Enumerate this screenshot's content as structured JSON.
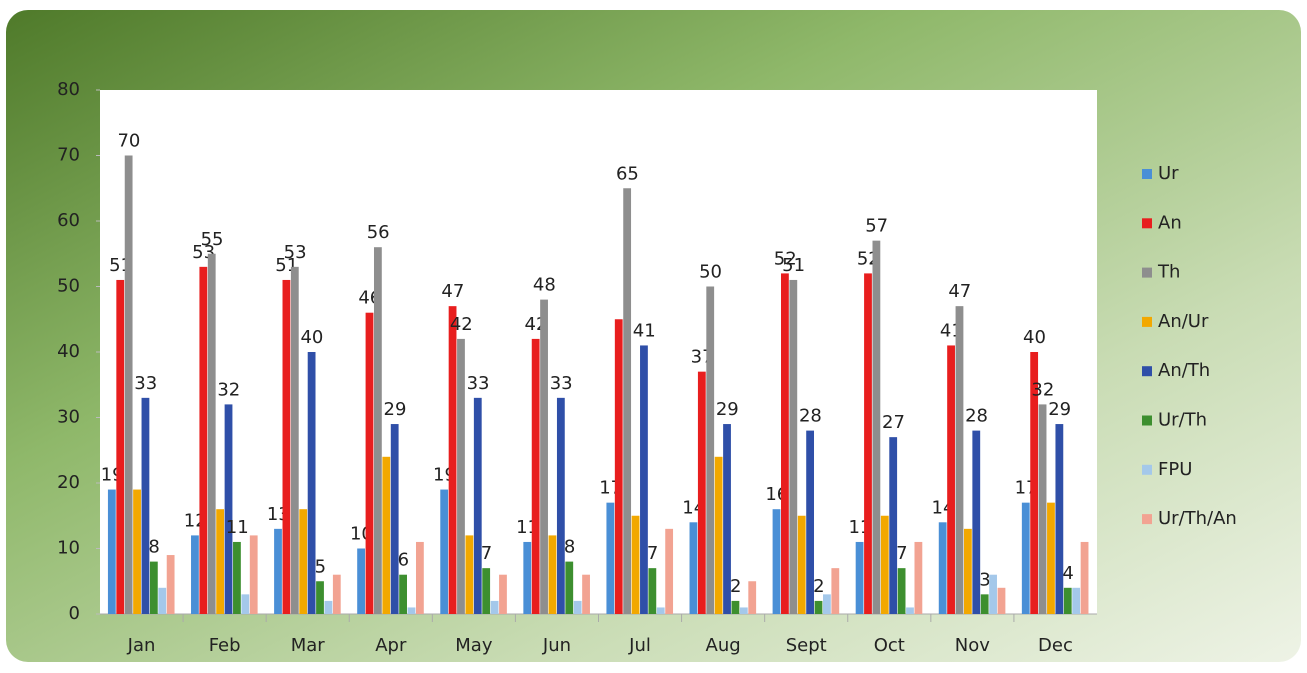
{
  "chart_data": {
    "type": "bar",
    "categories": [
      "Jan",
      "Feb",
      "Mar",
      "Apr",
      "May",
      "Jun",
      "Jul",
      "Aug",
      "Sept",
      "Oct",
      "Nov",
      "Dec"
    ],
    "ylim": [
      0,
      80
    ],
    "yticks": [
      0,
      10,
      20,
      30,
      40,
      50,
      60,
      70,
      80
    ],
    "legend": "right",
    "series": [
      {
        "name": "Ur",
        "color": "#4a8fd6",
        "values": [
          19,
          12,
          13,
          10,
          19,
          11,
          17,
          14,
          16,
          11,
          14,
          17
        ],
        "value_labels": [
          "19",
          "12",
          "13",
          "10",
          "19",
          "11",
          "17",
          "14",
          "16",
          "11",
          "14",
          "17"
        ]
      },
      {
        "name": "An",
        "color": "#e81e1e",
        "values": [
          51,
          53,
          51,
          46,
          47,
          42,
          45,
          37,
          52,
          52,
          41,
          40
        ],
        "value_labels": [
          "51",
          "53",
          "51",
          "46",
          "47",
          "42",
          null,
          "37",
          "52",
          "52",
          "41",
          "40"
        ]
      },
      {
        "name": "Th",
        "color": "#8e8e8e",
        "values": [
          70,
          55,
          53,
          56,
          42,
          48,
          65,
          50,
          51,
          57,
          47,
          32
        ],
        "value_labels": [
          "70",
          "55",
          "53",
          "56",
          "42",
          "48",
          "65",
          "50",
          "51",
          "57",
          "47",
          "32"
        ]
      },
      {
        "name": "An/Ur",
        "color": "#f2a800",
        "values": [
          19,
          16,
          16,
          24,
          12,
          12,
          15,
          24,
          15,
          15,
          13,
          17
        ]
      },
      {
        "name": "An/Th",
        "color": "#2f4fa8",
        "values": [
          33,
          32,
          40,
          29,
          33,
          33,
          41,
          29,
          28,
          27,
          28,
          29
        ],
        "value_labels": [
          "33",
          "32",
          "40",
          "29",
          "33",
          "33",
          "41",
          "29",
          "28",
          "27",
          "28",
          "29"
        ]
      },
      {
        "name": "Ur/Th",
        "color": "#3d8f2f",
        "values": [
          8,
          11,
          5,
          6,
          7,
          8,
          7,
          2,
          2,
          7,
          3,
          4
        ],
        "value_labels": [
          "8",
          "11",
          "5",
          "6",
          "7",
          "8",
          "7",
          "2",
          "2",
          "7",
          "3",
          "4"
        ]
      },
      {
        "name": "FPU",
        "color": "#a4c8ea",
        "values": [
          4,
          3,
          2,
          1,
          2,
          2,
          1,
          1,
          3,
          1,
          6,
          4
        ]
      },
      {
        "name": "Ur/Th/An",
        "color": "#f2a392",
        "values": [
          9,
          12,
          6,
          11,
          6,
          6,
          13,
          5,
          7,
          11,
          4,
          11
        ]
      }
    ]
  }
}
